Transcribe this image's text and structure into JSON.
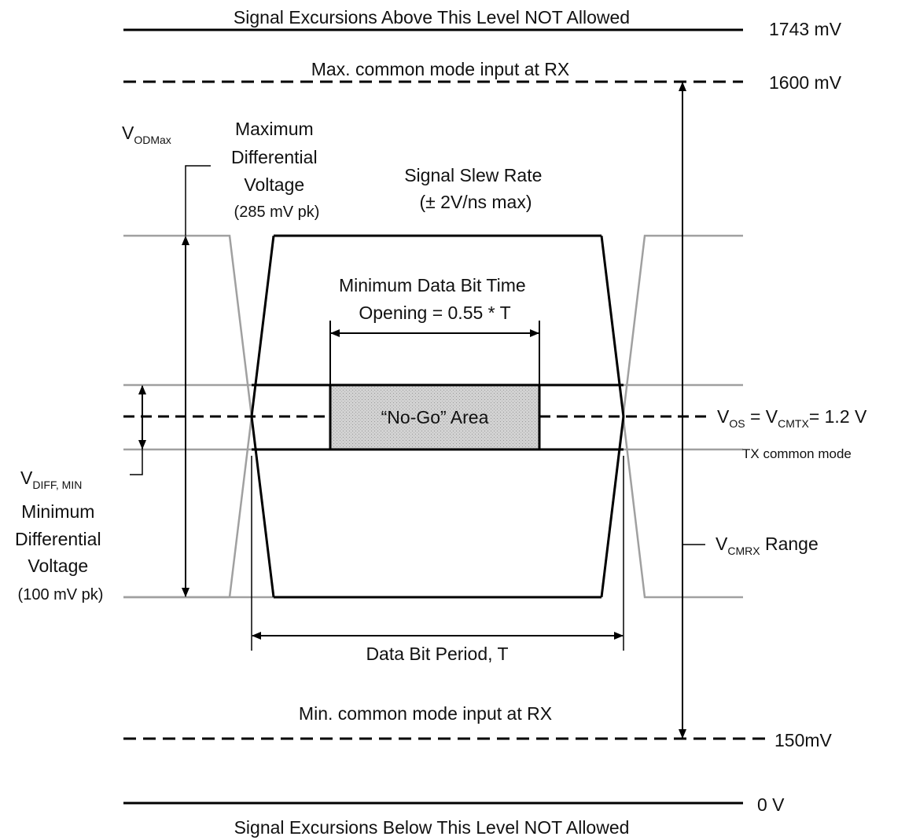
{
  "levels": {
    "upper_limit": {
      "text": "Signal Excursions Above This Level NOT Allowed",
      "value": "1743  mV"
    },
    "max_cm": {
      "text": "Max. common mode input at RX",
      "value": "1600  mV"
    },
    "min_cm": {
      "text": "Min. common mode input at RX",
      "value": "150mV"
    },
    "lower_limit": {
      "text": "Signal Excursions Below This Level NOT Allowed",
      "value": "0 V"
    }
  },
  "vod_max": {
    "symbol_main": "V",
    "symbol_sub": "ODMax",
    "desc": [
      "Maximum",
      "Differential",
      "Voltage",
      "(285 mV pk)"
    ]
  },
  "slew": {
    "lines": [
      "Signal Slew Rate",
      "(± 2V/ns max)"
    ]
  },
  "min_bit": {
    "lines": [
      "Minimum Data Bit Time",
      "Opening  = 0.55 * T"
    ]
  },
  "no_go": {
    "label": "“No-Go” Area"
  },
  "vos": {
    "parts": [
      {
        "main": "V",
        "sub": "OS"
      },
      {
        "main": " = V",
        "sub": "CMTX"
      },
      {
        "main": "= 1.2 V",
        "sub": ""
      }
    ],
    "caption": "TX common mode"
  },
  "vdiff_min": {
    "symbol_main": "V",
    "symbol_sub": "DIFF, MIN",
    "desc": [
      "Minimum",
      "Differential",
      "Voltage",
      "(100 mV pk)"
    ]
  },
  "vcmrx": {
    "symbol_main": "V",
    "symbol_sub": "CMRX",
    "suffix": " Range"
  },
  "period": {
    "label": "Data Bit Period, T"
  },
  "colors": {
    "line": "#000000",
    "trace": "#a0a0a0",
    "nogo_fill": "#d2d2d2"
  },
  "style": {
    "dashed_lines": [
      "Max. common mode input at RX",
      "Min. common mode input at RX",
      "V OS = V CMTX = 1.2 V"
    ]
  }
}
